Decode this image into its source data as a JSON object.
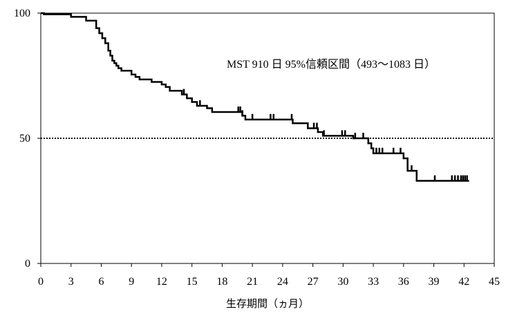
{
  "chart_data": {
    "type": "line",
    "title": "",
    "xlabel": "生存期間（ヵ月）",
    "ylabel": "",
    "xlim": [
      0,
      45
    ],
    "ylim": [
      0,
      100
    ],
    "x_ticks": [
      "0",
      "3",
      "6",
      "9",
      "12",
      "15",
      "18",
      "21",
      "24",
      "27",
      "30",
      "33",
      "36",
      "39",
      "42",
      "45"
    ],
    "y_ticks": [
      "0",
      "50",
      "100"
    ],
    "reference_line": {
      "y": 50,
      "style": "dotted"
    },
    "annotation": "MST 910 日 95%信頼区間（493～1083 日）",
    "grid": false,
    "legend": "none",
    "series": [
      {
        "step": true,
        "x": [
          0,
          0.3,
          3,
          4.5,
          5.5,
          5.8,
          6.1,
          6.4,
          6.7,
          6.9,
          7.1,
          7.3,
          7.5,
          7.7,
          8.0,
          9.0,
          9.4,
          9.8,
          11.0,
          12.0,
          12.4,
          12.8,
          14.0,
          14.5,
          15.0,
          15.5,
          16.5,
          17.0,
          20.0,
          20.3,
          25.0,
          26.5,
          27.5,
          28.0,
          31.0,
          32.5,
          32.8,
          33.0,
          36.0,
          36.4,
          37.3,
          42.5
        ],
        "y": [
          100,
          99.5,
          98.5,
          97,
          94,
          92,
          90,
          88,
          85,
          83,
          81,
          80,
          79,
          78,
          77,
          75.5,
          74.5,
          73.5,
          72.5,
          71.5,
          70.5,
          69,
          67.5,
          66,
          64.5,
          63,
          62,
          60.5,
          59,
          57.5,
          56,
          54,
          52.5,
          51,
          50,
          48,
          46,
          44,
          42,
          37,
          33,
          33
        ]
      }
    ],
    "censor_marks": {
      "x": [
        14.2,
        15.8,
        19.6,
        19.8,
        20.0,
        21.0,
        22.8,
        23.1,
        24.9,
        27.1,
        27.4,
        28.1,
        29.9,
        30.2,
        31.2,
        32.0,
        33.3,
        33.6,
        33.9,
        35.0,
        35.7,
        36.8,
        39.1,
        40.8,
        41.1,
        41.4,
        41.7,
        41.9,
        42.1,
        42.3
      ]
    }
  }
}
